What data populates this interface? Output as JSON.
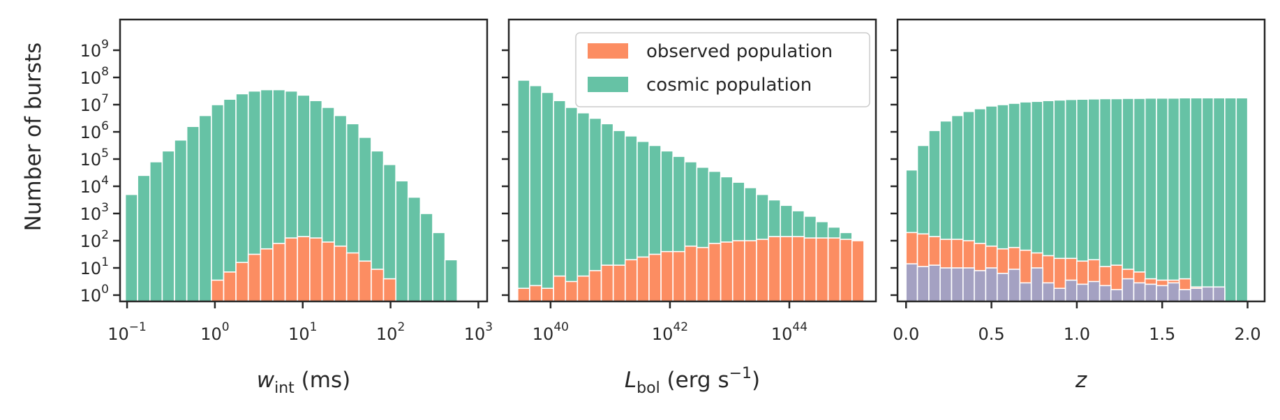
{
  "colors": {
    "observed": "#fc8d62",
    "cosmic": "#66c2a5",
    "overlap": "#a4a1c2",
    "axes": "#262626",
    "bar_edge": "#ffffff"
  },
  "y_axis": {
    "label": "Number of bursts",
    "scale": "log",
    "tick_base": "10",
    "tick_exponents": [
      "0",
      "1",
      "2",
      "3",
      "4",
      "5",
      "6",
      "7",
      "8",
      "9"
    ]
  },
  "legend": {
    "placement": "top-right of middle panel",
    "observed_label": "observed population",
    "cosmic_label": "cosmic population"
  },
  "chart_data": [
    {
      "type": "bar",
      "x_scale": "log",
      "x_label": {
        "base": "w",
        "sub": "int",
        "unit": " (ms)"
      },
      "x_tick_base": "10",
      "x_tick_exponents": [
        "−1",
        "0",
        "1",
        "2",
        "3"
      ],
      "xlim": [
        -1.08,
        3.1
      ],
      "bar_log_x_centers": [
        -0.95,
        -0.81,
        -0.67,
        -0.53,
        -0.39,
        -0.25,
        -0.11,
        0.03,
        0.17,
        0.31,
        0.45,
        0.59,
        0.73,
        0.87,
        1.01,
        1.15,
        1.29,
        1.43,
        1.57,
        1.71,
        1.85,
        1.99,
        2.13,
        2.27,
        2.41,
        2.55,
        2.69
      ],
      "series": [
        {
          "name": "cosmic population",
          "log_values": [
            3.7,
            4.4,
            4.9,
            5.3,
            5.7,
            6.2,
            6.6,
            7.0,
            7.2,
            7.4,
            7.5,
            7.55,
            7.55,
            7.5,
            7.35,
            7.15,
            6.9,
            6.6,
            6.3,
            5.8,
            5.3,
            4.8,
            4.2,
            3.6,
            3.0,
            2.3,
            1.3
          ]
        },
        {
          "name": "observed population",
          "log_values": [
            null,
            null,
            null,
            null,
            null,
            null,
            null,
            0.55,
            0.85,
            1.2,
            1.5,
            1.7,
            1.9,
            2.1,
            2.15,
            2.1,
            1.95,
            1.8,
            1.55,
            1.25,
            0.95,
            0.6,
            null,
            null,
            null,
            null,
            null
          ]
        }
      ]
    },
    {
      "type": "bar",
      "x_scale": "log",
      "x_label": {
        "base": "L",
        "sub": "bol",
        "unit": " (erg s",
        "sup": "−1",
        "close": ")"
      },
      "x_tick_base": "10",
      "x_tick_exponents": [
        "40",
        "42",
        "44"
      ],
      "xlim": [
        39.3,
        45.45
      ],
      "bar_log_x_centers": [
        39.55,
        39.75,
        39.95,
        40.15,
        40.35,
        40.55,
        40.75,
        40.95,
        41.15,
        41.35,
        41.55,
        41.75,
        41.95,
        42.15,
        42.35,
        42.55,
        42.75,
        42.95,
        43.15,
        43.35,
        43.55,
        43.75,
        43.95,
        44.15,
        44.35,
        44.55,
        44.75,
        44.95,
        45.15
      ],
      "series": [
        {
          "name": "cosmic population",
          "log_values": [
            7.9,
            7.7,
            7.45,
            7.15,
            6.9,
            6.7,
            6.5,
            6.3,
            6.05,
            5.85,
            5.65,
            5.5,
            5.3,
            5.1,
            4.9,
            4.7,
            4.55,
            4.35,
            4.15,
            3.95,
            3.7,
            3.5,
            3.3,
            3.1,
            2.9,
            2.7,
            2.5,
            2.3,
            2.0
          ]
        },
        {
          "name": "observed population",
          "log_values": [
            0.25,
            0.35,
            0.25,
            0.7,
            0.5,
            0.7,
            0.9,
            1.1,
            1.1,
            1.3,
            1.4,
            1.5,
            1.6,
            1.6,
            1.8,
            1.75,
            1.9,
            1.95,
            2.0,
            2.0,
            2.05,
            2.15,
            2.15,
            2.15,
            2.1,
            2.1,
            2.1,
            2.05,
            2.0
          ]
        }
      ]
    },
    {
      "type": "bar",
      "x_scale": "linear",
      "x_label": {
        "base": "z"
      },
      "x_tick_labels": [
        "0.0",
        "0.5",
        "1.0",
        "1.5",
        "2.0"
      ],
      "x_ticks": [
        0,
        0.5,
        1.0,
        1.5,
        2.0
      ],
      "xlim": [
        -0.05,
        2.1
      ],
      "bar_x_centers": [
        0.033,
        0.1,
        0.167,
        0.233,
        0.3,
        0.367,
        0.433,
        0.5,
        0.567,
        0.633,
        0.7,
        0.767,
        0.833,
        0.9,
        0.967,
        1.033,
        1.1,
        1.167,
        1.233,
        1.3,
        1.367,
        1.433,
        1.5,
        1.567,
        1.633,
        1.7,
        1.767,
        1.833,
        1.9,
        1.967
      ],
      "series": [
        {
          "name": "cosmic population",
          "log_values": [
            4.6,
            5.5,
            6.05,
            6.4,
            6.6,
            6.75,
            6.85,
            6.95,
            7.0,
            7.05,
            7.1,
            7.12,
            7.15,
            7.17,
            7.19,
            7.2,
            7.21,
            7.22,
            7.22,
            7.23,
            7.23,
            7.24,
            7.24,
            7.24,
            7.25,
            7.25,
            7.25,
            7.25,
            7.25,
            7.25
          ]
        },
        {
          "name": "observed population",
          "log_values": [
            2.3,
            2.25,
            2.15,
            2.05,
            2.05,
            2.0,
            1.9,
            1.8,
            1.7,
            1.75,
            1.65,
            1.55,
            1.45,
            1.35,
            1.35,
            1.25,
            1.3,
            1.05,
            1.1,
            0.95,
            0.85,
            0.6,
            0.55,
            0.55,
            0.6,
            0.3,
            0.3,
            0.25,
            null,
            null
          ]
        },
        {
          "name": "",
          "log_values": [
            1.15,
            1.05,
            1.1,
            1.0,
            1.0,
            1.0,
            0.9,
            1.0,
            0.8,
            0.95,
            0.45,
            1.0,
            0.45,
            0.25,
            0.55,
            0.4,
            0.5,
            0.35,
            0.2,
            0.6,
            0.45,
            0.4,
            0.35,
            0.45,
            0.2,
            0.25,
            0.3,
            0.3,
            null,
            null
          ]
        }
      ]
    }
  ]
}
